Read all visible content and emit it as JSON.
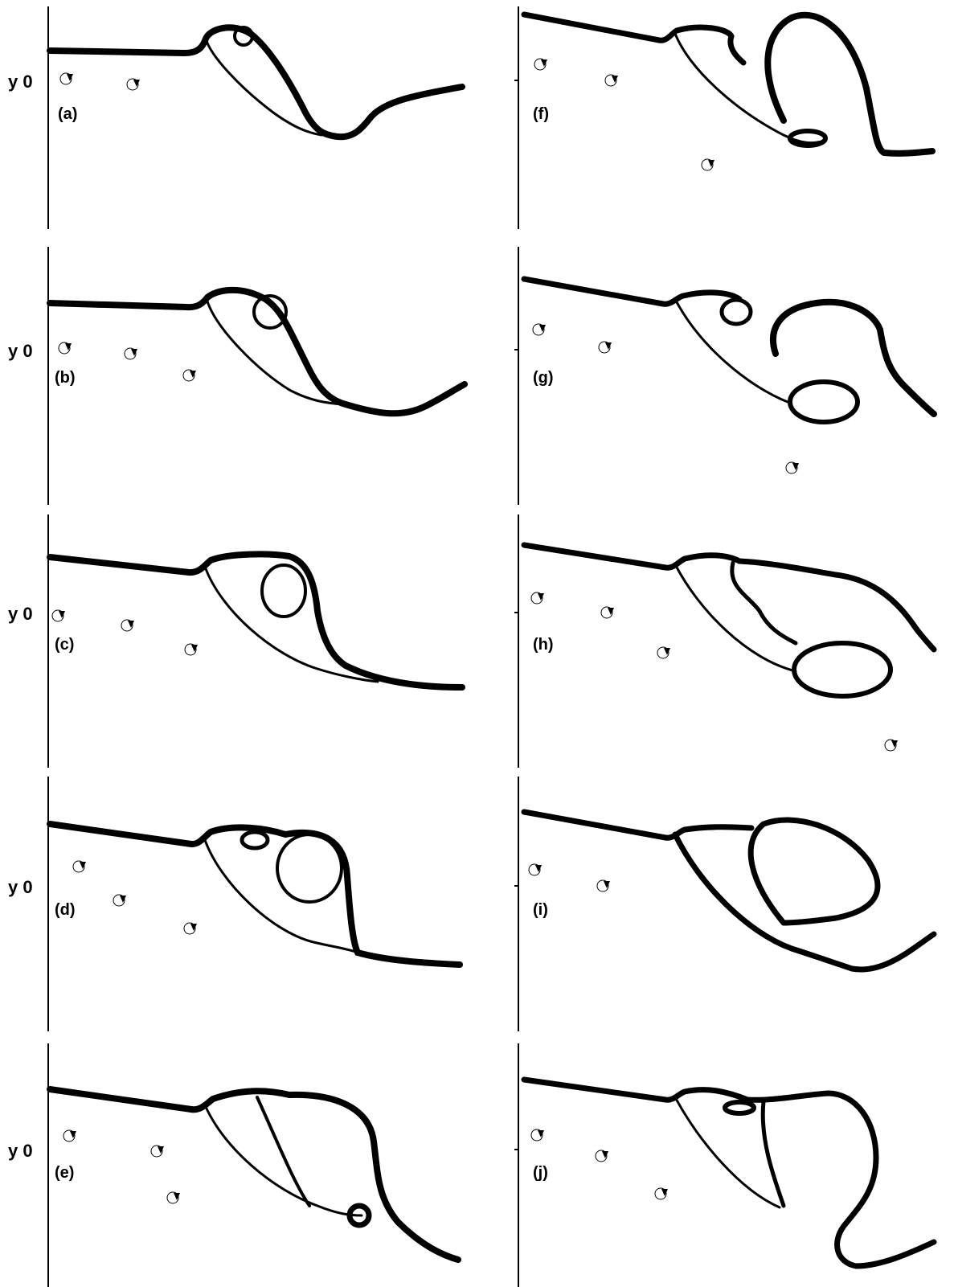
{
  "figure": {
    "axis_label": "y 0",
    "panels": [
      {
        "id": "a",
        "label": "(a)"
      },
      {
        "id": "b",
        "label": "(b)"
      },
      {
        "id": "c",
        "label": "(c)"
      },
      {
        "id": "d",
        "label": "(d)"
      },
      {
        "id": "e",
        "label": "(e)"
      },
      {
        "id": "f",
        "label": "(f)"
      },
      {
        "id": "g",
        "label": "(g)"
      },
      {
        "id": "h",
        "label": "(h)"
      },
      {
        "id": "i",
        "label": "(i)"
      },
      {
        "id": "j",
        "label": "(j)"
      }
    ],
    "colors": {
      "ink": "#000000",
      "background": "#ffffff"
    },
    "marker_icon": "point-vortex-marker"
  }
}
